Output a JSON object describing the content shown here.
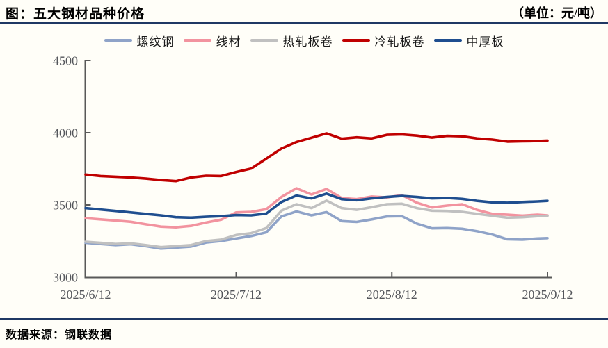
{
  "header": {
    "title": "图：五大钢材品种价格",
    "unit": "（单位：元/吨）"
  },
  "footer": {
    "source": "数据来源：钢联数据"
  },
  "style": {
    "accent_navy": "#1F3864",
    "axis_color": "#595959",
    "tick_label_color": "#54565B",
    "background": "#FFFEF8"
  },
  "chart_data": {
    "type": "line",
    "title": "五大钢材品种价格",
    "unit": "元/吨",
    "grid": false,
    "legend_position": "top",
    "ylim": [
      3000,
      4500
    ],
    "yticks": [
      3000,
      3500,
      4000,
      4500
    ],
    "xtick_labels": [
      "2025/6/12",
      "2025/7/12",
      "2025/8/12",
      "2025/9/12"
    ],
    "x": [
      "2025/6/12",
      "2025/6/15",
      "2025/6/18",
      "2025/6/21",
      "2025/6/24",
      "2025/6/27",
      "2025/6/30",
      "2025/7/3",
      "2025/7/6",
      "2025/7/9",
      "2025/7/12",
      "2025/7/15",
      "2025/7/18",
      "2025/7/21",
      "2025/7/24",
      "2025/7/27",
      "2025/7/30",
      "2025/8/2",
      "2025/8/5",
      "2025/8/8",
      "2025/8/11",
      "2025/8/14",
      "2025/8/17",
      "2025/8/20",
      "2025/8/23",
      "2025/8/26",
      "2025/8/29",
      "2025/9/1",
      "2025/9/4",
      "2025/9/7",
      "2025/9/10",
      "2025/9/12"
    ],
    "series": [
      {
        "id": "rebar",
        "name": "螺纹钢",
        "color": "#8FA3C8",
        "values": [
          3238,
          3230,
          3222,
          3228,
          3215,
          3198,
          3205,
          3212,
          3240,
          3250,
          3268,
          3285,
          3310,
          3420,
          3455,
          3428,
          3450,
          3388,
          3382,
          3400,
          3420,
          3422,
          3370,
          3338,
          3340,
          3335,
          3318,
          3295,
          3262,
          3260,
          3268,
          3270
        ]
      },
      {
        "id": "wire-rod",
        "name": "线材",
        "color": "#F2939F",
        "values": [
          3408,
          3400,
          3392,
          3383,
          3366,
          3350,
          3345,
          3355,
          3378,
          3398,
          3448,
          3452,
          3470,
          3555,
          3615,
          3572,
          3610,
          3548,
          3540,
          3558,
          3552,
          3568,
          3515,
          3482,
          3495,
          3505,
          3465,
          3438,
          3432,
          3426,
          3432,
          3428
        ]
      },
      {
        "id": "hot-rolled-coil",
        "name": "热轧板卷",
        "color": "#C0C0C0",
        "values": [
          3245,
          3238,
          3230,
          3234,
          3222,
          3208,
          3215,
          3222,
          3250,
          3260,
          3292,
          3305,
          3340,
          3460,
          3505,
          3478,
          3530,
          3478,
          3466,
          3484,
          3505,
          3508,
          3478,
          3460,
          3458,
          3452,
          3438,
          3425,
          3412,
          3415,
          3422,
          3425
        ]
      },
      {
        "id": "cold-rolled-coil",
        "name": "冷轧板卷",
        "color": "#C00000",
        "values": [
          3710,
          3700,
          3695,
          3690,
          3682,
          3672,
          3665,
          3690,
          3702,
          3700,
          3728,
          3752,
          3820,
          3890,
          3935,
          3965,
          3995,
          3958,
          3968,
          3960,
          3985,
          3988,
          3980,
          3966,
          3978,
          3975,
          3960,
          3952,
          3938,
          3940,
          3942,
          3945
        ]
      },
      {
        "id": "medium-plate",
        "name": "中厚板",
        "color": "#1F4E8F",
        "values": [
          3478,
          3468,
          3458,
          3448,
          3438,
          3428,
          3415,
          3412,
          3418,
          3422,
          3430,
          3428,
          3440,
          3520,
          3565,
          3545,
          3578,
          3540,
          3532,
          3545,
          3555,
          3562,
          3555,
          3545,
          3548,
          3542,
          3528,
          3518,
          3515,
          3520,
          3524,
          3528
        ]
      }
    ]
  }
}
